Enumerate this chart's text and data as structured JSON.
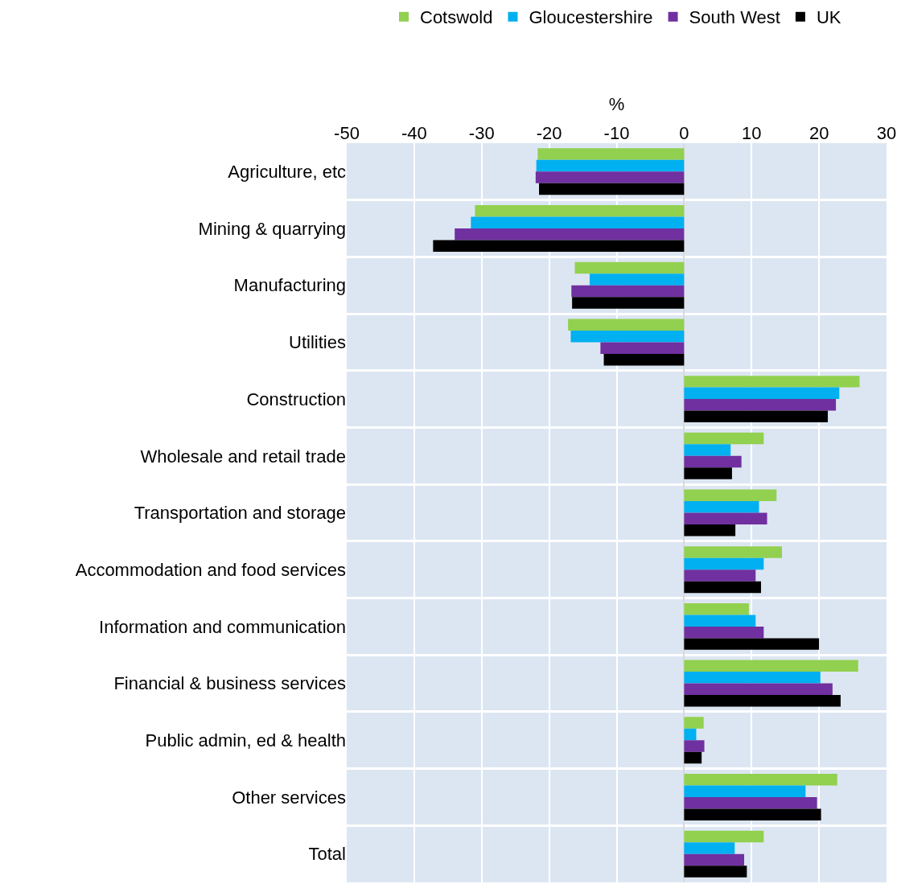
{
  "chart_data": {
    "type": "bar",
    "orientation": "horizontal",
    "xlabel": "%",
    "categories": [
      "Agriculture, etc",
      "Mining & quarrying",
      "Manufacturing",
      "Utilities",
      "Construction",
      "Wholesale and retail trade",
      "Transportation and storage",
      "Accommodation and food services",
      "Information and communication",
      "Financial & business services",
      "Public admin, ed & health",
      "Other services",
      "Total"
    ],
    "series": [
      {
        "name": "Cotswold",
        "color": "#92d050",
        "values": [
          -21.7,
          -31.0,
          -16.2,
          -17.2,
          26.0,
          11.8,
          13.7,
          14.5,
          9.6,
          25.8,
          2.9,
          22.7,
          11.8
        ]
      },
      {
        "name": "Gloucestershire",
        "color": "#00b0f0",
        "values": [
          -21.9,
          -31.6,
          -14.0,
          -16.8,
          23.0,
          6.9,
          11.1,
          11.8,
          10.6,
          20.2,
          1.8,
          18.0,
          7.5
        ]
      },
      {
        "name": "South West",
        "color": "#7030a0",
        "values": [
          -22.0,
          -34.0,
          -16.7,
          -12.4,
          22.5,
          8.5,
          12.3,
          10.6,
          11.8,
          22.0,
          3.0,
          19.7,
          8.9
        ]
      },
      {
        "name": "UK",
        "color": "#000000",
        "values": [
          -21.5,
          -37.2,
          -16.6,
          -11.9,
          21.3,
          7.1,
          7.6,
          11.4,
          20.0,
          23.2,
          2.6,
          20.3,
          9.3
        ]
      }
    ],
    "xlim": [
      -50,
      30
    ],
    "xticks": [
      -50,
      -40,
      -30,
      -20,
      -10,
      0,
      10,
      20,
      30
    ],
    "grid": true,
    "legend": "top"
  }
}
